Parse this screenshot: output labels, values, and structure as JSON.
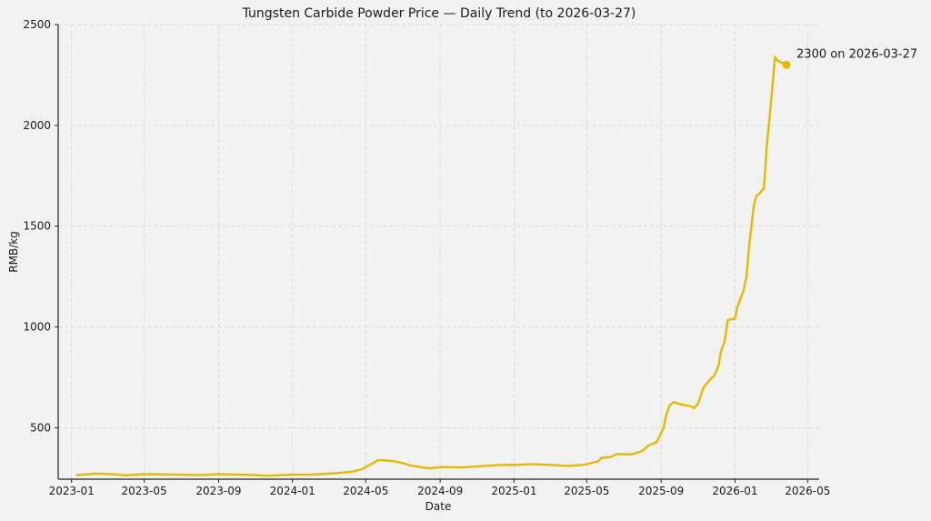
{
  "chart_data": {
    "type": "line",
    "title": "Tungsten Carbide Powder Price — Daily Trend (to 2026-03-27)",
    "xlabel": "Date",
    "ylabel": "RMB/kg",
    "xlim": [
      "2022-12-10",
      "2026-05-20"
    ],
    "ylim": [
      245,
      2500
    ],
    "xticks": [
      "2023-01",
      "2023-05",
      "2023-09",
      "2024-01",
      "2024-05",
      "2024-09",
      "2025-01",
      "2025-05",
      "2025-09",
      "2026-01",
      "2026-05"
    ],
    "yticks": [
      500,
      1000,
      1500,
      2000,
      2500
    ],
    "grid": true,
    "line_color": "#e6b800",
    "series": [
      {
        "points": [
          [
            "2023-01-10",
            265
          ],
          [
            "2023-02-10",
            273
          ],
          [
            "2023-03-10",
            270
          ],
          [
            "2023-04-01",
            264
          ],
          [
            "2023-05-01",
            270
          ],
          [
            "2023-06-10",
            269
          ],
          [
            "2023-08-01",
            265
          ],
          [
            "2023-09-01",
            270
          ],
          [
            "2023-10-15",
            267
          ],
          [
            "2023-11-20",
            262
          ],
          [
            "2024-01-01",
            267
          ],
          [
            "2024-02-01",
            268
          ],
          [
            "2024-03-15",
            275
          ],
          [
            "2024-04-10",
            283
          ],
          [
            "2024-04-25",
            295
          ],
          [
            "2024-05-10",
            320
          ],
          [
            "2024-05-22",
            340
          ],
          [
            "2024-06-15",
            335
          ],
          [
            "2024-07-01",
            325
          ],
          [
            "2024-07-15",
            312
          ],
          [
            "2024-08-15",
            298
          ],
          [
            "2024-09-05",
            305
          ],
          [
            "2024-10-05",
            303
          ],
          [
            "2024-11-10",
            310
          ],
          [
            "2024-12-10",
            316
          ],
          [
            "2025-01-05",
            316
          ],
          [
            "2025-02-01",
            320
          ],
          [
            "2025-03-01",
            316
          ],
          [
            "2025-04-01",
            311
          ],
          [
            "2025-04-25",
            316
          ],
          [
            "2025-05-20",
            333
          ],
          [
            "2025-05-25",
            350
          ],
          [
            "2025-06-10",
            355
          ],
          [
            "2025-06-20",
            370
          ],
          [
            "2025-07-15",
            368
          ],
          [
            "2025-08-01",
            385
          ],
          [
            "2025-08-10",
            410
          ],
          [
            "2025-08-18",
            420
          ],
          [
            "2025-08-25",
            430
          ],
          [
            "2025-09-05",
            500
          ],
          [
            "2025-09-10",
            570
          ],
          [
            "2025-09-15",
            610
          ],
          [
            "2025-09-22",
            628
          ],
          [
            "2025-10-01",
            618
          ],
          [
            "2025-10-20",
            606
          ],
          [
            "2025-10-25",
            597
          ],
          [
            "2025-11-01",
            620
          ],
          [
            "2025-11-10",
            700
          ],
          [
            "2025-11-18",
            730
          ],
          [
            "2025-11-28",
            760
          ],
          [
            "2025-12-05",
            810
          ],
          [
            "2025-12-08",
            870
          ],
          [
            "2025-12-15",
            930
          ],
          [
            "2025-12-20",
            1035
          ],
          [
            "2026-01-01",
            1040
          ],
          [
            "2026-01-05",
            1100
          ],
          [
            "2026-01-15",
            1180
          ],
          [
            "2026-01-20",
            1250
          ],
          [
            "2026-01-25",
            1420
          ],
          [
            "2026-02-01",
            1600
          ],
          [
            "2026-02-05",
            1650
          ],
          [
            "2026-02-10",
            1660
          ],
          [
            "2026-02-18",
            1690
          ],
          [
            "2026-02-22",
            1880
          ],
          [
            "2026-03-01",
            2100
          ],
          [
            "2026-03-04",
            2200
          ],
          [
            "2026-03-08",
            2340
          ],
          [
            "2026-03-12",
            2320
          ],
          [
            "2026-03-20",
            2310
          ],
          [
            "2026-03-27",
            2300
          ]
        ]
      }
    ],
    "annotations": [
      {
        "text": "2300 on 2026-03-27",
        "x": "2026-03-27",
        "y": 2300
      }
    ]
  }
}
